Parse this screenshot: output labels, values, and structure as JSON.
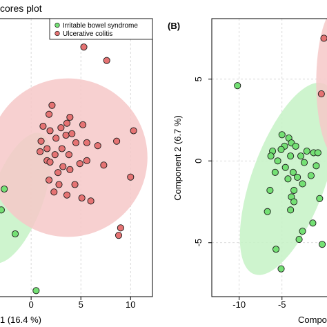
{
  "chart_data": [
    {
      "type": "scatter",
      "panel_label": "",
      "title": "cores plot",
      "xlabel": "1 (16.4 %)",
      "ylabel": "",
      "xlim": [
        -3.2,
        12.2
      ],
      "ylim": [
        -8.4,
        10.2
      ],
      "x_ticks": [
        0,
        5,
        10
      ],
      "grid": true,
      "legend": {
        "placement": "top-right"
      },
      "series": [
        {
          "name": "Irritable bowel syndrome",
          "color": "#74e074",
          "ellipse_color": "#c6f2c6",
          "points": [
            [
              -2.7,
              -1.2
            ],
            [
              -3.0,
              -2.6
            ],
            [
              -1.6,
              -4.2
            ],
            [
              0.5,
              -8.0
            ]
          ]
        },
        {
          "name": "Ulcerative colitis",
          "color": "#e57373",
          "ellipse_color": "#f6c8c8",
          "points": [
            [
              7.6,
              7.4
            ],
            [
              5.3,
              8.3
            ],
            [
              2.1,
              4.4
            ],
            [
              1.8,
              3.8
            ],
            [
              3.9,
              3.6
            ],
            [
              1.2,
              3.0
            ],
            [
              3.0,
              2.9
            ],
            [
              3.6,
              3.2
            ],
            [
              5.2,
              3.1
            ],
            [
              1.9,
              2.7
            ],
            [
              2.5,
              2.2
            ],
            [
              3.5,
              2.4
            ],
            [
              4.1,
              2.5
            ],
            [
              10.3,
              2.7
            ],
            [
              8.6,
              2.0
            ],
            [
              5.6,
              1.9
            ],
            [
              1.0,
              2.0
            ],
            [
              1.6,
              1.5
            ],
            [
              4.5,
              1.9
            ],
            [
              3.1,
              1.5
            ],
            [
              0.9,
              1.3
            ],
            [
              2.4,
              1.1
            ],
            [
              1.6,
              0.7
            ],
            [
              3.8,
              1.1
            ],
            [
              6.7,
              1.7
            ],
            [
              1.9,
              0.6
            ],
            [
              3.2,
              0.3
            ],
            [
              4.9,
              0.5
            ],
            [
              5.6,
              0.7
            ],
            [
              2.7,
              -0.1
            ],
            [
              3.9,
              0.1
            ],
            [
              7.3,
              0.4
            ],
            [
              1.8,
              -0.6
            ],
            [
              2.8,
              -0.9
            ],
            [
              4.4,
              -0.9
            ],
            [
              10.0,
              -0.4
            ],
            [
              2.3,
              -1.4
            ],
            [
              3.6,
              -1.6
            ],
            [
              5.1,
              -1.8
            ],
            [
              6.0,
              -2.0
            ],
            [
              9.0,
              -3.8
            ],
            [
              8.8,
              -4.3
            ]
          ]
        }
      ],
      "ellipses": [
        {
          "series": "Irritable bowel syndrome",
          "cx": -1.4,
          "cy": -1.8,
          "rx": 2.6,
          "ry": 4.6,
          "angle": 20
        },
        {
          "series": "Ulcerative colitis",
          "cx": 3.7,
          "cy": 0.9,
          "rx": 8.0,
          "ry": 5.3,
          "angle": -18
        }
      ]
    },
    {
      "type": "scatter",
      "panel_label": "(B)",
      "title": "",
      "xlabel": "Compo",
      "ylabel": "Component 2 (6.7 %)",
      "xlim": [
        -13.2,
        0.5
      ],
      "ylim": [
        -8.3,
        8.7
      ],
      "x_ticks": [
        -10,
        -5
      ],
      "y_ticks": [
        5,
        0,
        -5
      ],
      "grid": true,
      "series": [
        {
          "name": "Irritable bowel syndrome",
          "color": "#74e074",
          "ellipse_color": "#c6f2c6",
          "points": [
            [
              -10.2,
              4.6
            ],
            [
              -5.0,
              1.6
            ],
            [
              -4.2,
              1.4
            ],
            [
              -3.9,
              1.1
            ],
            [
              -4.7,
              0.9
            ],
            [
              -6.1,
              0.6
            ],
            [
              -6.3,
              0.3
            ],
            [
              -5.1,
              0.7
            ],
            [
              -3.4,
              0.9
            ],
            [
              -2.8,
              0.3
            ],
            [
              -2.4,
              -0.1
            ],
            [
              -1.3,
              0.5
            ],
            [
              -0.8,
              0.5
            ],
            [
              -5.5,
              0.0
            ],
            [
              -4.0,
              0.3
            ],
            [
              -2.1,
              0.6
            ],
            [
              -4.6,
              -0.4
            ],
            [
              -5.8,
              -0.7
            ],
            [
              -3.7,
              -0.7
            ],
            [
              -1.0,
              -0.3
            ],
            [
              -4.3,
              -1.1
            ],
            [
              -3.2,
              -1.0
            ],
            [
              -2.6,
              -1.4
            ],
            [
              -1.6,
              -0.9
            ],
            [
              -3.6,
              -1.8
            ],
            [
              -6.4,
              -1.8
            ],
            [
              -3.9,
              -2.2
            ],
            [
              -3.6,
              -2.5
            ],
            [
              -4.0,
              -3.0
            ],
            [
              -6.7,
              -3.1
            ],
            [
              -1.4,
              -3.8
            ],
            [
              -0.3,
              -5.1
            ],
            [
              -5.7,
              -5.4
            ],
            [
              -5.1,
              -6.6
            ],
            [
              -2.6,
              -4.3
            ],
            [
              -0.6,
              -2.3
            ],
            [
              -3.0,
              -4.8
            ]
          ]
        },
        {
          "name": "Ulcerative colitis",
          "color": "#e57373",
          "ellipse_color": "#f6c8c8",
          "points": [
            [
              -0.1,
              7.5
            ],
            [
              -0.4,
              4.1
            ]
          ]
        }
      ],
      "ellipses": [
        {
          "series": "Irritable bowel syndrome",
          "cx": -4.2,
          "cy": -1.1,
          "rx": 4.3,
          "ry": 6.2,
          "angle": 20
        },
        {
          "series": "Ulcerative colitis",
          "cx": 1.5,
          "cy": 4.8,
          "rx": 2.5,
          "ry": 4.6,
          "angle": 0
        }
      ]
    }
  ]
}
